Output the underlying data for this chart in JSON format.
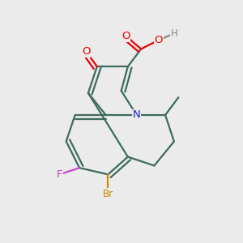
{
  "bg": "#ebebeb",
  "bc": "#3d6b5e",
  "atom_colors": {
    "O": "#e80000",
    "N": "#2020cc",
    "F": "#cc44cc",
    "Br": "#cc8800",
    "H": "#888888",
    "C": "#3d6b5e"
  },
  "bond_lw": 1.6,
  "fs": 9.0,
  "xlim": [
    -0.58,
    0.72
  ],
  "ylim": [
    -0.82,
    0.88
  ]
}
